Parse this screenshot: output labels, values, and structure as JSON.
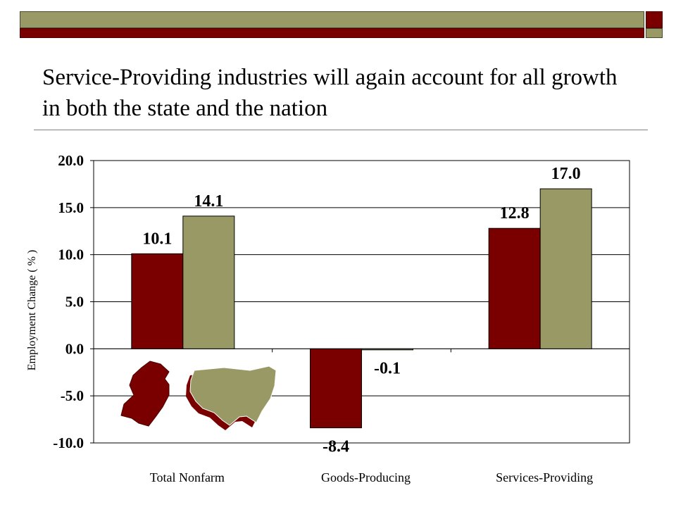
{
  "slide": {
    "title": "Service-Providing industries will again account for all growth in both the state and the nation"
  },
  "colors": {
    "new_jersey": "#7a0000",
    "nation": "#999966",
    "header_olive": "#999966",
    "header_maroon": "#7a0000"
  },
  "icons": {
    "state": "new-jersey-map-icon",
    "nation": "us-map-icon"
  },
  "chart_data": {
    "type": "bar",
    "categories": [
      "Total Nonfarm",
      "Goods-Producing",
      "Services-Providing"
    ],
    "series": [
      {
        "values": [
          10.1,
          -8.4,
          12.8
        ],
        "labels": [
          "10.1",
          "-8.4",
          "12.8"
        ]
      },
      {
        "values": [
          14.1,
          -0.1,
          17.0
        ],
        "labels": [
          "14.1",
          "-0.1",
          "17.0"
        ]
      }
    ],
    "ylabel": "Employment Change ( % )",
    "ylim": [
      -10,
      20
    ],
    "yticks": [
      20,
      15,
      10,
      5,
      0,
      -5,
      -10
    ],
    "ytick_labels": [
      "20.0",
      "15.0",
      "10.0",
      "5.0",
      "0.0",
      "-5.0",
      "-10.0"
    ],
    "grid": true,
    "legend": "map icons bottom-left"
  }
}
